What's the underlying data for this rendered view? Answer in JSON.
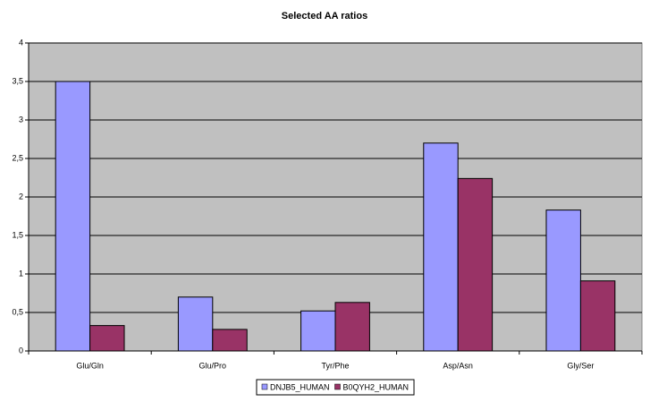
{
  "chart_data": {
    "type": "bar",
    "title": "Selected AA ratios",
    "categories": [
      "Glu/Gln",
      "Glu/Pro",
      "Tyr/Phe",
      "Asp/Asn",
      "Gly/Ser"
    ],
    "series": [
      {
        "name": "DNJB5_HUMAN",
        "color": "#9999ff",
        "values": [
          3.5,
          0.7,
          0.52,
          2.7,
          1.83
        ]
      },
      {
        "name": "B0QYH2_HUMAN",
        "color": "#993366",
        "values": [
          0.33,
          0.28,
          0.63,
          2.24,
          0.91
        ]
      }
    ],
    "ylim": [
      0,
      4
    ],
    "yticks": [
      0,
      {
        "value": 0.5,
        "label": "0,5"
      },
      1,
      {
        "value": 1.5,
        "label": "1,5"
      },
      2,
      {
        "value": 2.5,
        "label": "2,5"
      },
      3,
      {
        "value": 3.5,
        "label": "3,5"
      },
      4
    ],
    "grid": true,
    "legend": "bottom"
  }
}
